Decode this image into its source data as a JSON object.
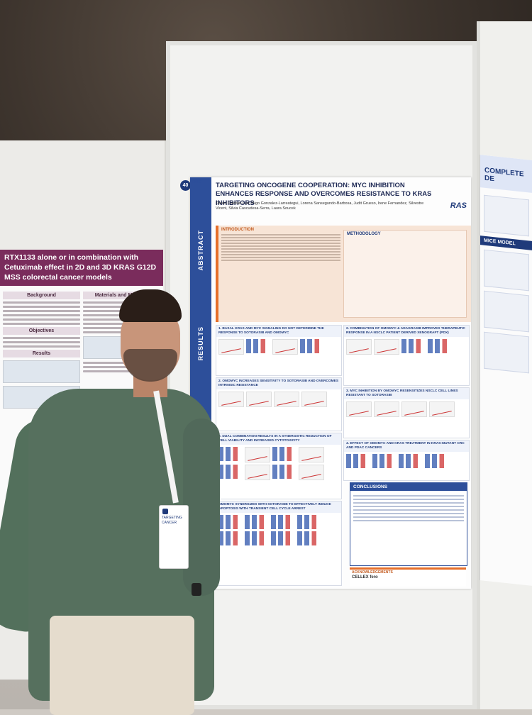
{
  "left_poster": {
    "title": "RTX1133 alone or in combination with Cetuximab effect in 2D and 3D KRAS G12D MSS colorectal cancer models",
    "sections": [
      "Background",
      "Materials and Methods",
      "Objectives",
      "Results"
    ]
  },
  "center_poster": {
    "number": "40",
    "logos_text": "VHIO",
    "title": "TARGETING ONCOGENE COOPERATION: MYC INHIBITION ENHANCES RESPONSE AND OVERCOMES RESISTANCE TO KRAS INHIBITORS",
    "authors": "Daniel Capitan-Leo, Iñigo Gonzalez-Larreategui, Lorena Sansegundo-Barbosa, Judit Grueso, Irene Fernandez, Silvestre Vicent, Silvia Cascudesa-Serra, Laura Soucek",
    "ras_logo": "RAS",
    "abstract_label": "ABSTRACT",
    "results_label": "RESULTS",
    "introduction_head": "INTRODUCTION",
    "methodology_head": "METHODOLOGY",
    "results_heads": [
      "1. BASAL KRAS AND MYC SIGNALING DO NOT DETERMINE THE RESPONSE TO SOTORASIB AND OMOMYC",
      "2. COMBINATION OF OMOMYC & ADAGRASIB IMPROVES THERAPEUTIC RESPONSE IN A NSCLC PATIENT DERIVED XENOGRAFT (PDX)",
      "2. OMOMYC INCREASES SENSITIVITY TO SOTORASIB AND OVERCOMES INTRINSIC RESISTANCE",
      "3. MYC INHIBITION BY OMOMYC RESENSITIZES NSCLC CELL LINES RESISTANT TO SOTORASIB",
      "3. DUAL COMBINATION RESULTS IN A SYNERGISTIC REDUCTION OF CELL VIABILITY AND INCREASED CYTOTOXICITY",
      "4. EFFECT OF OMOMYC AND KRAS TREATMENT IN KRAS-MUTANT CRC AND PDAC CANCERS",
      "OMOMYC SYNERGIZES WITH SOTORASIB TO EFFECTIVELY INDUCE APOPTOSIS WITH TRANSIENT CELL CYCLE ARREST"
    ],
    "conclusions_head": "CONCLUSIONS",
    "acknowledgements_head": "ACKNOWLEDGEMENTS",
    "acknowledgement_logos": "CELLEX  fero"
  },
  "right_poster": {
    "title": "COMPLETE DE",
    "section": "MICE MODEL"
  },
  "badge": {
    "text": "TARGETING CANCER"
  }
}
